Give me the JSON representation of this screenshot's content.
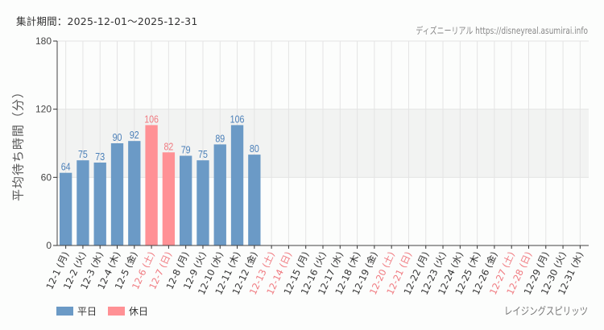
{
  "header": {
    "period": "集計期間：2025-12-01～2025-12-31",
    "credit": "ディズニーリアル https://disneyreal.asumirai.info"
  },
  "footer": {
    "attraction": "レイジングスピリッツ"
  },
  "colors": {
    "weekday": "#6b9ac6",
    "holiday": "#ff9195",
    "weekday_label": "#4a7fb8",
    "holiday_label": "#f07a80",
    "band": "#f2f3f2",
    "grid": "#e4e4e4"
  },
  "chart_data": {
    "type": "bar",
    "title": "",
    "xlabel": "",
    "ylabel": "平均待ち時間（分）",
    "ylim": [
      0,
      180
    ],
    "yticks": [
      0,
      60,
      120,
      180
    ],
    "shaded_band": [
      60,
      120
    ],
    "grid": true,
    "legend_position": "bottom-left",
    "legend": [
      {
        "label": "平日",
        "color": "#6b9ac6"
      },
      {
        "label": "休日",
        "color": "#ff9195"
      }
    ],
    "categories": [
      "12-1 (月)",
      "12-2 (火)",
      "12-3 (水)",
      "12-4 (木)",
      "12-5 (金)",
      "12-6 (土)",
      "12-7 (日)",
      "12-8 (月)",
      "12-9 (火)",
      "12-10 (水)",
      "12-11 (木)",
      "12-12 (金)",
      "12-13 (土)",
      "12-14 (日)",
      "12-15 (月)",
      "12-16 (火)",
      "12-17 (水)",
      "12-18 (木)",
      "12-19 (金)",
      "12-20 (土)",
      "12-21 (日)",
      "12-22 (月)",
      "12-23 (火)",
      "12-24 (水)",
      "12-25 (木)",
      "12-26 (金)",
      "12-27 (土)",
      "12-28 (日)",
      "12-29 (月)",
      "12-30 (火)",
      "12-31 (水)"
    ],
    "holiday_flags": [
      false,
      false,
      false,
      false,
      false,
      true,
      true,
      false,
      false,
      false,
      false,
      false,
      true,
      true,
      false,
      false,
      false,
      false,
      false,
      true,
      true,
      false,
      false,
      false,
      false,
      false,
      true,
      true,
      false,
      false,
      false
    ],
    "values": [
      64,
      75,
      73,
      90,
      92,
      106,
      82,
      79,
      75,
      89,
      106,
      80,
      null,
      null,
      null,
      null,
      null,
      null,
      null,
      null,
      null,
      null,
      null,
      null,
      null,
      null,
      null,
      null,
      null,
      null,
      null
    ],
    "series": [
      {
        "name": "平日",
        "values": [
          64,
          75,
          73,
          90,
          92,
          null,
          null,
          79,
          75,
          89,
          106,
          80
        ]
      },
      {
        "name": "休日",
        "values": [
          null,
          null,
          null,
          null,
          null,
          106,
          82,
          null,
          null,
          null,
          null,
          null
        ]
      }
    ]
  }
}
